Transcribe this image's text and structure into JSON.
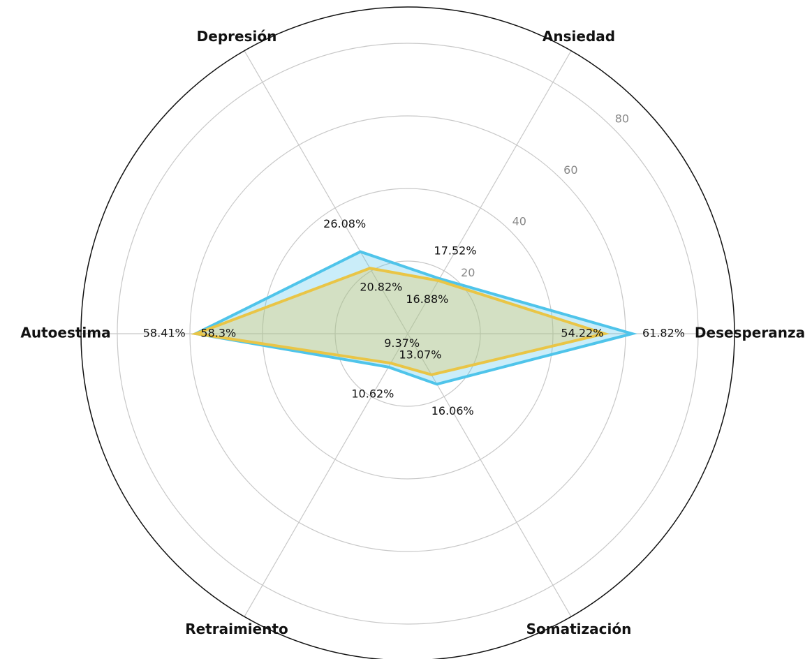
{
  "chart_data": {
    "type": "radar",
    "categories": [
      "Desesperanza",
      "Ansiedad",
      "Depresión",
      "Autoestima",
      "Retraimiento",
      "Somatización"
    ],
    "series": [
      {
        "color": "#4fc4ea",
        "values": [
          61.82,
          17.52,
          26.08,
          58.41,
          10.62,
          16.06
        ],
        "value_labels": [
          "61.82%",
          "17.52%",
          "26.08%",
          "58.41%",
          "10.62%",
          "16.06%"
        ]
      },
      {
        "color": "#e9c546",
        "values": [
          54.22,
          16.88,
          20.82,
          58.3,
          9.37,
          13.07
        ],
        "value_labels": [
          "54.22%",
          "16.88%",
          "20.82%",
          "58.3%",
          "9.37%",
          "13.07%"
        ]
      }
    ],
    "ylim": [
      0,
      90
    ],
    "yticks": [
      20,
      40,
      60,
      80
    ],
    "grid": true
  }
}
